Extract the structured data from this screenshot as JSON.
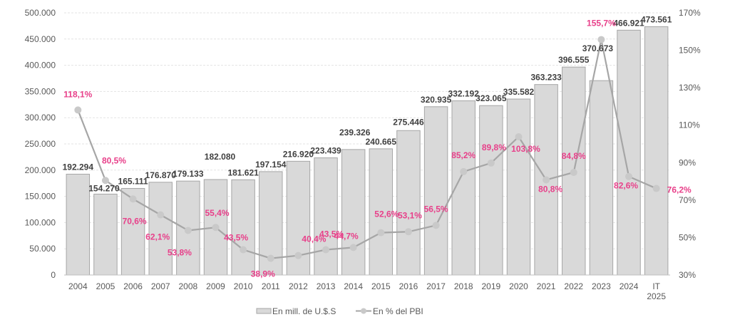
{
  "chart_data": {
    "type": "bar",
    "title": "",
    "xlabel": "",
    "ylabel": "",
    "categories": [
      "2004",
      "2005",
      "2006",
      "2007",
      "2008",
      "2009",
      "2010",
      "2011",
      "2012",
      "2013",
      "2014",
      "2015",
      "2016",
      "2017",
      "2018",
      "2019",
      "2020",
      "2021",
      "2022",
      "2023",
      "2024",
      "IT 2025"
    ],
    "series": [
      {
        "name": "En mill. de U.$.S",
        "type": "bar",
        "axis": "left",
        "values": [
          192294,
          154270,
          165111,
          176870,
          179133,
          182080,
          181621,
          197154,
          216920,
          223439,
          239326,
          240665,
          275446,
          320935,
          332192,
          323065,
          335582,
          363233,
          396555,
          370673,
          466921,
          473561
        ],
        "labels": [
          "192.294",
          "154.270",
          "165.111",
          "176.870",
          "179.133",
          "182.080",
          "181.621",
          "197.154",
          "216.920",
          "223.439",
          "239.326",
          "240.665",
          "275.446",
          "320.935",
          "332.192",
          "323.065",
          "335.582",
          "363.233",
          "396.555",
          "370.673",
          "466.921",
          "473.561"
        ],
        "color": "#d9d9d9",
        "border": "#a6a6a6"
      },
      {
        "name": "En % del PBI",
        "type": "line",
        "axis": "right",
        "values": [
          118.1,
          80.5,
          70.6,
          62.1,
          53.8,
          55.4,
          43.5,
          38.9,
          40.4,
          43.5,
          44.7,
          52.6,
          53.1,
          56.5,
          85.2,
          89.8,
          103.8,
          80.8,
          84.8,
          155.7,
          82.6,
          76.2
        ],
        "labels": [
          "118,1%",
          "80,5%",
          "70,6%",
          "62,1%",
          "53,8%",
          "55,4%",
          "43,5%",
          "38,9%",
          "40,4%",
          "43,5%",
          "44,7%",
          "52,6%",
          "53,1%",
          "56,5%",
          "85,2%",
          "89,8%",
          "103,8%",
          "80,8%",
          "84,8%",
          "155,7%",
          "82,6%",
          "76,2%"
        ],
        "color": "#a6a6a6",
        "label_color": "#e8408a"
      }
    ],
    "y_left": {
      "range": [
        0,
        500000
      ],
      "ticks": [
        0,
        50000,
        100000,
        150000,
        200000,
        250000,
        300000,
        350000,
        400000,
        450000,
        500000
      ],
      "tick_labels": [
        "0",
        "50.000",
        "100.000",
        "150.000",
        "200.000",
        "250.000",
        "300.000",
        "350.000",
        "400.000",
        "450.000",
        "500.000"
      ]
    },
    "y_right": {
      "range": [
        30,
        170
      ],
      "ticks": [
        30,
        50,
        70,
        90,
        110,
        130,
        150,
        170
      ],
      "tick_labels": [
        "30%",
        "50%",
        "70%",
        "90%",
        "110%",
        "130%",
        "150%",
        "170%"
      ]
    },
    "grid": true,
    "legend": {
      "position": "bottom",
      "entries": [
        "En mill. de U.$.S",
        "En % del PBI"
      ]
    }
  }
}
